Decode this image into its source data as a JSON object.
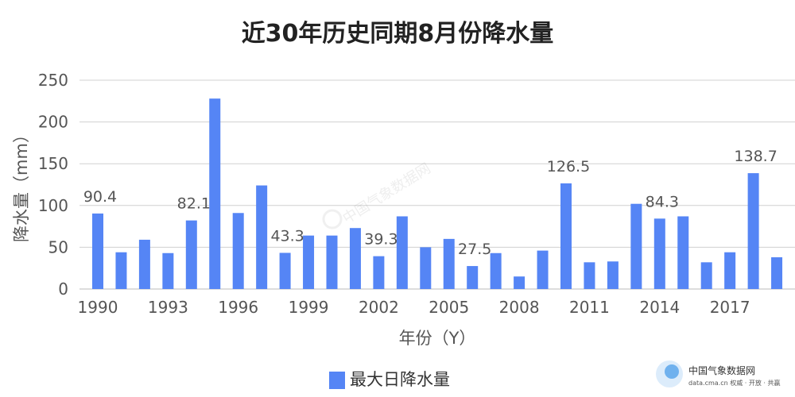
{
  "chart_data": {
    "type": "bar",
    "title": "近30年历史同期8月份降水量",
    "xlabel": "年份（Y）",
    "ylabel": "降水量（mm）",
    "ylim": [
      0,
      250
    ],
    "yticks": [
      "0",
      "50",
      "100",
      "150",
      "200",
      "250"
    ],
    "grid": true,
    "legend_position": "bottom",
    "series": [
      {
        "name": "最大日降水量",
        "color": "#5585f5",
        "values": [
          90.4,
          44,
          59,
          43,
          82.1,
          228,
          91,
          124,
          43.3,
          64,
          64,
          73,
          39.3,
          87,
          50,
          60,
          27.5,
          43,
          15,
          46,
          126.5,
          32,
          33,
          102,
          84.3,
          87,
          32,
          44,
          138.7,
          38
        ]
      }
    ],
    "categories": [
      "1990",
      "1991",
      "1992",
      "1993",
      "1994",
      "1995",
      "1996",
      "1997",
      "1998",
      "1999",
      "2000",
      "2001",
      "2002",
      "2003",
      "2004",
      "2005",
      "2006",
      "2007",
      "2008",
      "2009",
      "2010",
      "2011",
      "2012",
      "2013",
      "2014",
      "2015",
      "2016",
      "2017",
      "2018",
      "2019"
    ],
    "x_tick_labels": [
      "1990",
      "1993",
      "1996",
      "1999",
      "2002",
      "2005",
      "2008",
      "2011",
      "2014",
      "2017"
    ],
    "data_labels": [
      {
        "category": "1990",
        "text": "90.4"
      },
      {
        "category": "1994",
        "text": "82.1"
      },
      {
        "category": "1998",
        "text": "43.3"
      },
      {
        "category": "2002",
        "text": "39.3"
      },
      {
        "category": "2006",
        "text": "27.5"
      },
      {
        "category": "2010",
        "text": "126.5"
      },
      {
        "category": "2014",
        "text": "84.3"
      },
      {
        "category": "2018",
        "text": "138.7"
      }
    ]
  },
  "watermark": {
    "center_text": "中国气象数据网",
    "logo_title": "中国气象数据网",
    "logo_subtitle": "data.cma.cn 权威 · 开放 · 共赢"
  }
}
